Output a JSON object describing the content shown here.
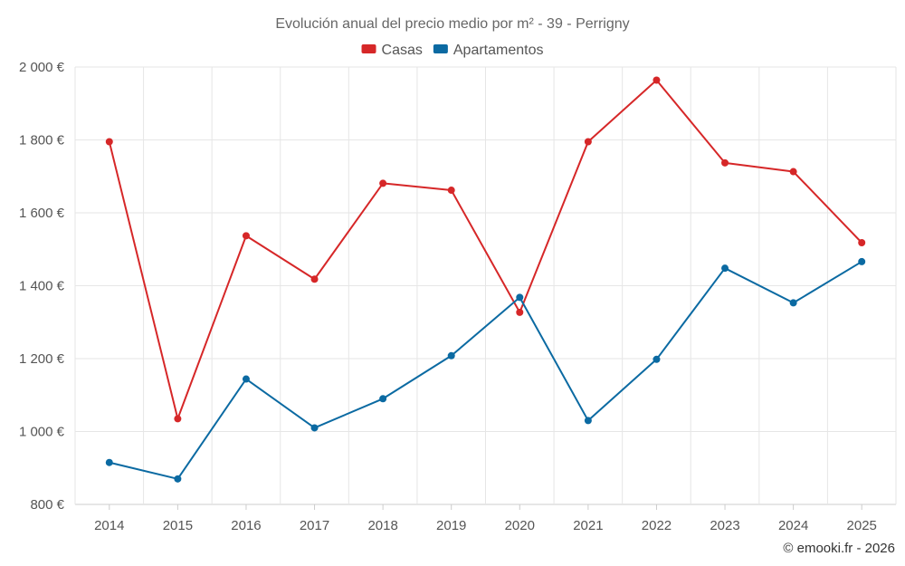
{
  "chart_data": {
    "type": "line",
    "title": "Evolución anual del precio medio por m² - 39 - Perrigny",
    "categories": [
      "2014",
      "2015",
      "2016",
      "2017",
      "2018",
      "2019",
      "2020",
      "2021",
      "2022",
      "2023",
      "2024",
      "2025"
    ],
    "series": [
      {
        "name": "Casas",
        "color": "#d62728",
        "values": [
          1795,
          1035,
          1537,
          1418,
          1681,
          1662,
          1327,
          1795,
          1964,
          1737,
          1713,
          1518
        ]
      },
      {
        "name": "Apartamentos",
        "color": "#0b6aa2",
        "values": [
          915,
          870,
          1144,
          1010,
          1090,
          1208,
          1368,
          1030,
          1198,
          1448,
          1353,
          1466
        ]
      }
    ],
    "ylim": [
      800,
      2000
    ],
    "yticks": [
      800,
      1000,
      1200,
      1400,
      1600,
      1800,
      2000
    ],
    "ytick_labels": [
      "800 €",
      "1 000 €",
      "1 200 €",
      "1 400 €",
      "1 600 €",
      "1 800 €",
      "2 000 €"
    ],
    "xlabel": "",
    "ylabel": "",
    "grid": true,
    "legend": "top-center"
  },
  "credit": "© emooki.fr - 2026"
}
